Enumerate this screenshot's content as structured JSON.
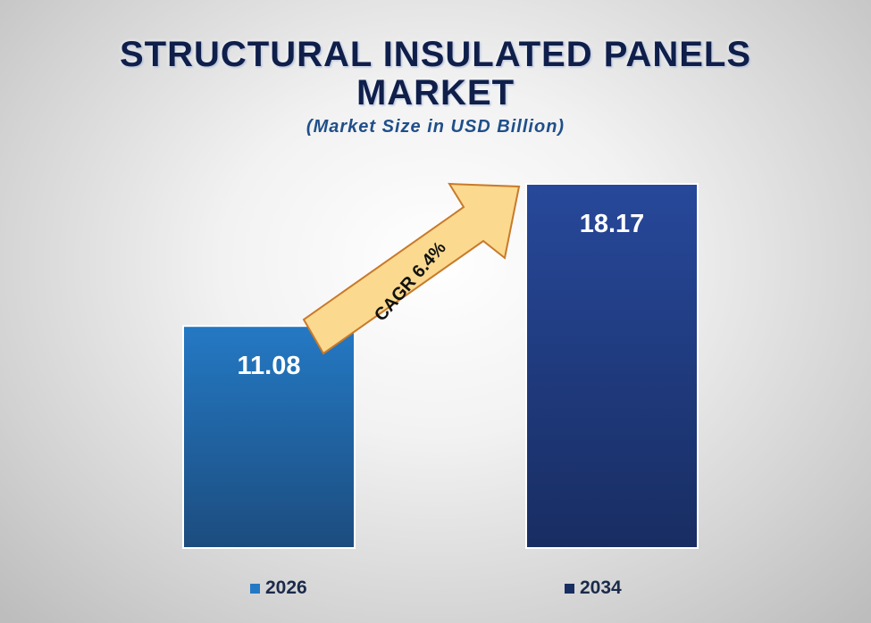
{
  "title_line1": "STRUCTURAL INSULATED PANELS",
  "title_line2": "MARKET",
  "subtitle": "(Market Size in USD Billion)",
  "cagr_label": "CAGR 6.4%",
  "colors": {
    "bar_2026_top": "#2479c4",
    "bar_2026_bottom": "#1c4c7e",
    "bar_2034_top": "#27489a",
    "bar_2034_bottom": "#182d62",
    "arrow_fill": "#fbd98f",
    "arrow_stroke": "#c87a2a"
  },
  "chart_data": {
    "type": "bar",
    "categories": [
      "2026",
      "2034"
    ],
    "values": [
      11.08,
      18.17
    ],
    "value_labels": [
      "11.08",
      "18.17"
    ],
    "title": "STRUCTURAL INSULATED PANELS MARKET",
    "subtitle": "(Market Size in USD Billion)",
    "annotation": "CAGR 6.4%",
    "legend": [
      "2026",
      "2034"
    ],
    "legend_position": "bottom",
    "grid": false
  }
}
